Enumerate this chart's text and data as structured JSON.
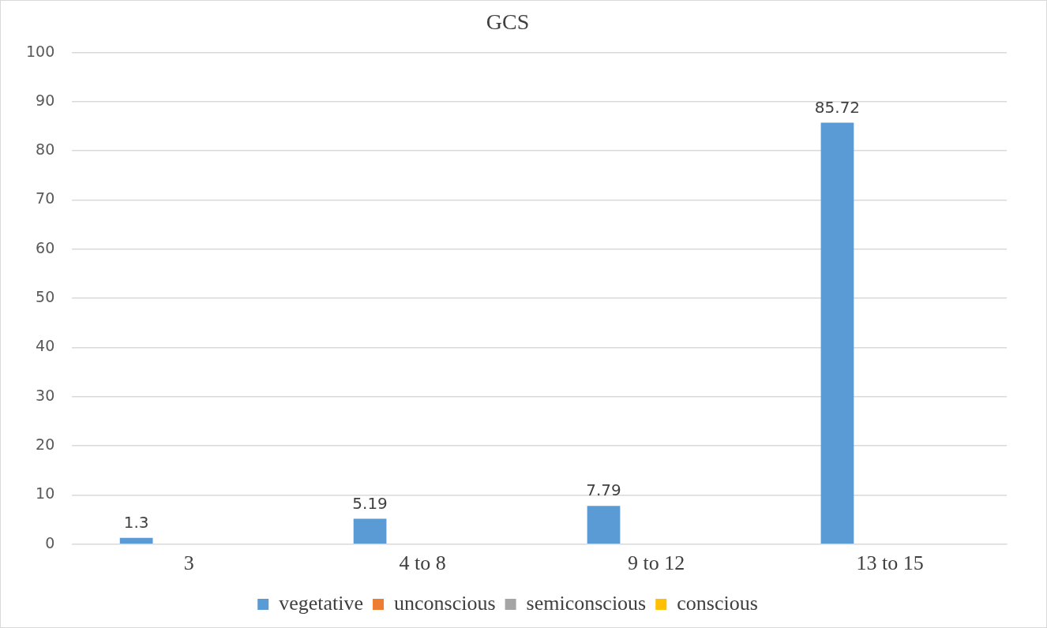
{
  "chart_data": {
    "type": "bar",
    "title": "GCS",
    "categories": [
      "3",
      "4 to 8",
      "9 to 12",
      "13 to 15"
    ],
    "series": [
      {
        "name": "vegetative",
        "color": "#5b9bd5",
        "values": [
          1.3,
          5.19,
          7.79,
          85.72
        ]
      },
      {
        "name": "unconscious",
        "color": "#ed7d31",
        "values": [
          null,
          null,
          null,
          null
        ]
      },
      {
        "name": "semiconscious",
        "color": "#a5a5a5",
        "values": [
          null,
          null,
          null,
          null
        ]
      },
      {
        "name": "conscious",
        "color": "#ffc000",
        "values": [
          null,
          null,
          null,
          null
        ]
      }
    ],
    "ylim": [
      0,
      100
    ],
    "yticks": [
      0,
      10,
      20,
      30,
      40,
      50,
      60,
      70,
      80,
      90,
      100
    ],
    "grid": "y",
    "legend": "bottom",
    "data_labels": true
  }
}
